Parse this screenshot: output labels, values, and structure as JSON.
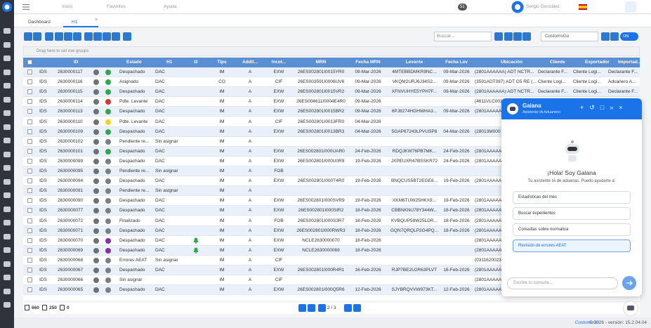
{
  "topbar": {
    "menu": [
      "Inicio",
      "Favoritos",
      "Ayuda"
    ],
    "badge": "51",
    "user": "Sergio González"
  },
  "tabs": [
    "Dashboard",
    "H1"
  ],
  "toolbar": {
    "search_placeholder": "Buscar...",
    "profile": "CustomsGo",
    "toggle": "ON"
  },
  "group_hint": "Drag here to set row groups",
  "table": {
    "columns": [
      "ID",
      "Estado",
      "H1",
      "I2",
      "Tips",
      "Addit...",
      "Incot...",
      "MRN",
      "Fecha MRN",
      "Levante",
      "Fecha Lev",
      "Ubicación",
      "Cliente",
      "Exportador",
      "Importad..."
    ],
    "rows": [
      {
        "tipo": "IDS",
        "id": "2630000117",
        "status": "#2eaa4a",
        "estado": "Despachado",
        "h1": "DAC",
        "tips": "IM",
        "addit": "A",
        "incot": "EXW",
        "mrn": "26ES002801I0015YR0",
        "fecha_mrn": "09-Mar-2026",
        "levante": "4MTEBBDMKR9NC...",
        "fecha_lev": "09-Mar-2026",
        "ubicacion": "(2801AAAAAA) ADT NCTR...",
        "cliente": "Declarante F...",
        "exportador": "Cliente Logi...",
        "importador": "Declarante F..."
      },
      {
        "tipo": "IDS",
        "id": "2630000116",
        "status": "#2eaa4a",
        "estado": "Asignado",
        "h1": "DAC",
        "tips": "CO",
        "addit": "A",
        "incot": "CIF",
        "mrn": "26ES003591I0006UV6",
        "fecha_mrn": "09-Mar-2026",
        "levante": "VKQM2URJ6J34S2...",
        "fecha_lev": "09-Mar-2026",
        "ubicacion": "(3591ADT087) ADT G5 RE (...",
        "cliente": "Cliente Logi...",
        "exportador": "Cliente Logi...",
        "importador": "Aduanero A..."
      },
      {
        "tipo": "IDS",
        "id": "2630000115",
        "status": "#2eaa4a",
        "estado": "Despachado",
        "h1": "DAC",
        "tips": "IM",
        "addit": "A",
        "incot": "EXW",
        "mrn": "26ES002801I0015VR2",
        "fecha_mrn": "09-Mar-2026",
        "levante": "XFNVUHYE5YPH7F...",
        "fecha_lev": "09-Mar-2026",
        "ubicacion": "(2801AAAAAA) ADT NCTR...",
        "cliente": "Declarante F...",
        "exportador": "Cliente Logi...",
        "importador": "Declarante F..."
      },
      {
        "tipo": "IDS",
        "id": "2630000114",
        "status": "#d9342b",
        "estado": "Pdte. Levante",
        "h1": "DAC",
        "tips": "IM",
        "addit": "A",
        "incot": "EXW",
        "mrn": "26ES004611I0004E4R0",
        "fecha_mrn": "09-Mar-2026",
        "ubicacion": "(4611VLC001..."
      },
      {
        "tipo": "IDS",
        "id": "2630000113",
        "status": "#2eaa4a",
        "estado": "Despachado",
        "h1": "DAC",
        "tips": "IM",
        "addit": "A",
        "incot": "EXW",
        "mrn": "26ES002801I0015BR2",
        "fecha_mrn": "09-Mar-2026",
        "levante": "6PJ8274HGHWHA3...",
        "fecha_lev": "09-Mar-2026",
        "ubicacion": "(2801AAAAAA"
      },
      {
        "tipo": "IDS",
        "id": "2630000110",
        "status": "#f7d21c",
        "estado": "Pdte. Levante",
        "h1": "DAC",
        "tips": "IM",
        "addit": "A",
        "incot": "CIF",
        "mrn": "26ES002801I0013FR0",
        "fecha_mrn": "04-Mar-2026"
      },
      {
        "tipo": "IDS",
        "id": "2630000109",
        "status": "#2eaa4a",
        "estado": "Despachado",
        "h1": "DAC",
        "tips": "IM",
        "addit": "A",
        "incot": "EXW",
        "mrn": "26ES002801I0013BR3",
        "fecha_mrn": "04-Mar-2026",
        "levante": "5GAP67243LPVUSP8",
        "fecha_lev": "04-Mar-2026",
        "ubicacion": "(28013M000"
      },
      {
        "tipo": "IDS",
        "id": "2630000102",
        "status": "#7a7f85",
        "estado": "Pendiente re...",
        "h1": "Sin asignar",
        "tips": "IM",
        "addit": "A"
      },
      {
        "tipo": "IDS",
        "id": "2630000101",
        "status": "#2eaa4a",
        "estado": "Despachado",
        "h1": "DAC",
        "tips": "IM",
        "addit": "A",
        "incot": "EXW",
        "mrn": "26ES002801I000UAR0",
        "fecha_mrn": "24-Feb-2026",
        "levante": "RDQJKW76PB7MK...",
        "fecha_lev": "24-Feb-2026",
        "ubicacion": "(2801AAAAAA"
      },
      {
        "tipo": "IDS",
        "id": "2630000099",
        "status": "#7a7f85",
        "estado": "Despachado",
        "h1": "DAC",
        "tips": "IM",
        "addit": "A",
        "incot": "EXW",
        "mrn": "26ES002801I000U0R9",
        "fecha_mrn": "19-Feb-2026",
        "levante": "JXPEUXR47BSSKR72",
        "fecha_lev": "24-Feb-2026",
        "ubicacion": "(2801AAAAAA"
      },
      {
        "tipo": "IDS",
        "id": "2630000095",
        "status": "#7a7f85",
        "estado": "Pendiente re...",
        "h1": "Sin asignar",
        "tips": "IM",
        "addit": "A",
        "incot": "FOB"
      },
      {
        "tipo": "IDS",
        "id": "2630000094",
        "status": "#7a7f85",
        "estado": "Despachado",
        "h1": "DAC",
        "tips": "IM",
        "addit": "A",
        "incot": "EXW",
        "mrn": "26ES002801I000T4R0",
        "fecha_mrn": "19-Feb-2026",
        "levante": "BNQCUS5BT2EGE6...",
        "fecha_lev": "19-Feb-2026",
        "ubicacion": "(2801AAAAAA"
      },
      {
        "tipo": "IDS",
        "id": "2630000091",
        "status": "#7a7f85",
        "estado": "Pendiente re...",
        "h1": "Sin asignar",
        "tips": "IM",
        "addit": "A"
      },
      {
        "tipo": "IDS",
        "id": "2630000090",
        "status": "#7a7f85",
        "estado": "Despachado",
        "h1": "DAC",
        "tips": "IM",
        "addit": "A",
        "incot": "EXW",
        "mrn": "26ES002801I000SVR9",
        "fecha_mrn": "19-Feb-2026",
        "levante": "XKM6TUW25HKX9...",
        "fecha_lev": "19-Feb-2026",
        "ubicacion": "(2801AAAAAA"
      },
      {
        "tipo": "IDS",
        "id": "2630000077",
        "status": "#7a7f85",
        "estado": "Despachado",
        "h1": "DAC",
        "tips": "IM",
        "addit": "A",
        "incot": "EXW",
        "mrn": "26ES002801I000SIR2",
        "fecha_mrn": "18-Feb-2026",
        "levante": "CBBNKNU78Y344W...",
        "fecha_lev": "18-Feb-2026",
        "ubicacion": "(2801AAAAAA"
      },
      {
        "tipo": "IDS",
        "id": "2630000072",
        "status": "#7a7f85",
        "estado": "Finalizado",
        "h1": "DAC",
        "tips": "IM",
        "addit": "A",
        "incot": "FOB",
        "mrn": "26ES002801I000S3R7",
        "fecha_mrn": "18-Feb-2026",
        "levante": "KVBQUP59W25LDR...",
        "fecha_lev": "18-Feb-2026",
        "ubicacion": "(2801AAAAAA"
      },
      {
        "tipo": "IDS",
        "id": "2630000071",
        "status": "#7a7f85",
        "estado": "Despachado",
        "h1": "DAC",
        "tips": "IM",
        "addit": "A",
        "incot": "EXW",
        "mrn": "26ES002801I000RWR3",
        "fecha_mrn": "18-Feb-2026",
        "levante": "GQN7QRQLP2G4PQ...",
        "fecha_lev": "18-Feb-2026",
        "ubicacion": "(2801AAAAAA"
      },
      {
        "tipo": "IDS",
        "id": "2630000070",
        "status": "#8e2ca6",
        "estado": "Despachado",
        "h1": "DAC",
        "alert": true,
        "tips": "IM",
        "addit": "A",
        "incot": "EXW",
        "mrn": "NCLE2630000070",
        "fecha_mrn": "18-Feb-2026",
        "ubicacion": "(2801AAAAAA"
      },
      {
        "tipo": "IDS",
        "id": "2630000069",
        "status": "#8e2ca6",
        "estado": "Despachado",
        "h1": "DAC",
        "alert": true,
        "tips": "IM",
        "addit": "A",
        "incot": "EXW",
        "mrn": "NCLE2630000069",
        "fecha_mrn": "18-Feb-2026",
        "ubicacion": "(2801AAAAAA"
      },
      {
        "tipo": "IDS",
        "id": "2630000068",
        "status": "#7a7f85",
        "estado": "Errores AEAT",
        "h1": "Sin asignar",
        "tips": "IM",
        "addit": "A",
        "incot": "CIF",
        "ubicacion": "(0311620023"
      },
      {
        "tipo": "IDS",
        "id": "2630000067",
        "status": "#7a7f85",
        "estado": "Despachado",
        "h1": "DAC",
        "tips": "IM",
        "addit": "A",
        "incot": "EXW",
        "mrn": "26ES002801I000R4R1",
        "fecha_mrn": "16-Feb-2026",
        "levante": "RJP7BE2U2R63PLVT",
        "fecha_lev": "16-Feb-2026",
        "ubicacion": "(2801AAAAAA"
      },
      {
        "tipo": "IDS",
        "id": "2630000066",
        "status": "#7a7f85",
        "estado": "Sin asignar",
        "tips": "IM",
        "addit": "A",
        "incot": "CIF",
        "ubicacion": "(2801AAAAAA"
      },
      {
        "tipo": "IDS",
        "id": "2630000065",
        "status": "#7a7f85",
        "estado": "Despachado",
        "h1": "DAC",
        "tips": "IM",
        "addit": "A",
        "incot": "EXW",
        "mrn": "26ES002801I000Q5R6",
        "fecha_mrn": "12-Feb-2026",
        "levante": "SJYBRQVVW973KT...",
        "fecha_lev": "12-Feb-2026",
        "ubicacion": "(2801AAAAAA"
      }
    ]
  },
  "chat": {
    "title": "Galana",
    "subtitle": "Asistente IA Aduanero",
    "greeting": "¡Hola! Soy Galana",
    "intro": "Tu asistente IA de aduanas. Puedo ayudarte a:",
    "options": [
      "Estadísticas del mes",
      "Buscar expedientes",
      "Consultas sobre normativa",
      "Revisión de errores AEAT"
    ],
    "input_placeholder": "Escribe tu consulta..."
  },
  "footer": {
    "counts": [
      660,
      250,
      0
    ],
    "page": "2 / 3"
  },
  "bottom": {
    "brand": "CustomsGo",
    "version": "© 2026 - versión: 15.2.04.04"
  }
}
